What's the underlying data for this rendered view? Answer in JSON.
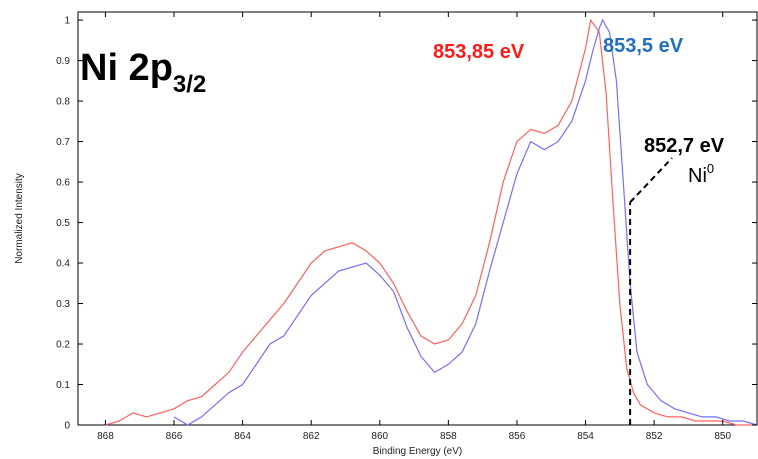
{
  "chart_data": {
    "type": "line",
    "title_main": "Ni 2p",
    "title_subscript": "3/2",
    "xlabel": "Binding Energy (eV)",
    "ylabel": "Normalized Intensity",
    "xlim": [
      849,
      868.8
    ],
    "x_reversed": true,
    "ylim": [
      0,
      1.02
    ],
    "x_ticks": [
      868,
      866,
      864,
      862,
      860,
      858,
      856,
      854,
      852,
      850
    ],
    "y_ticks": [
      0,
      0.1,
      0.2,
      0.3,
      0.4,
      0.5,
      0.6,
      0.7,
      0.8,
      0.9,
      1
    ],
    "y_tick_labels": [
      "0",
      "0.1",
      "0.2",
      "0.3",
      "0.4",
      "0.5",
      "0.6",
      "0.7",
      "0.8",
      "0.9",
      "1"
    ],
    "grid": false,
    "series": [
      {
        "color": "#ff6060",
        "x": [
          868.0,
          867.6,
          867.2,
          866.8,
          866.4,
          866.0,
          865.6,
          865.2,
          864.8,
          864.4,
          864.0,
          863.6,
          863.2,
          862.8,
          862.4,
          862.0,
          861.6,
          861.2,
          860.8,
          860.4,
          860.0,
          859.6,
          859.2,
          858.8,
          858.4,
          858.0,
          857.6,
          857.2,
          856.8,
          856.4,
          856.0,
          855.6,
          855.2,
          854.8,
          854.4,
          854.0,
          853.85,
          853.6,
          853.4,
          853.2,
          853.0,
          852.8,
          852.6,
          852.4,
          852.0,
          851.6,
          851.2,
          850.8,
          850.4,
          850.0,
          849.6,
          849.0
        ],
        "y": [
          0.0,
          0.01,
          0.03,
          0.02,
          0.03,
          0.04,
          0.06,
          0.07,
          0.1,
          0.13,
          0.18,
          0.22,
          0.26,
          0.3,
          0.35,
          0.4,
          0.43,
          0.44,
          0.45,
          0.43,
          0.4,
          0.35,
          0.28,
          0.22,
          0.2,
          0.21,
          0.25,
          0.32,
          0.45,
          0.6,
          0.7,
          0.73,
          0.72,
          0.74,
          0.8,
          0.93,
          1.0,
          0.97,
          0.82,
          0.55,
          0.3,
          0.14,
          0.08,
          0.05,
          0.03,
          0.02,
          0.02,
          0.01,
          0.01,
          0.01,
          0.0,
          0.0
        ]
      },
      {
        "color": "#7070ff",
        "x": [
          866.0,
          865.6,
          865.2,
          864.8,
          864.4,
          864.0,
          863.6,
          863.2,
          862.8,
          862.4,
          862.0,
          861.6,
          861.2,
          860.8,
          860.4,
          860.0,
          859.6,
          859.2,
          858.8,
          858.4,
          858.0,
          857.6,
          857.2,
          856.8,
          856.4,
          856.0,
          855.6,
          855.2,
          854.8,
          854.4,
          854.0,
          853.8,
          853.6,
          853.5,
          853.3,
          853.1,
          852.9,
          852.7,
          852.5,
          852.2,
          851.8,
          851.4,
          851.0,
          850.6,
          850.2,
          849.8,
          849.4,
          849.0
        ],
        "y": [
          0.02,
          0.0,
          0.02,
          0.05,
          0.08,
          0.1,
          0.15,
          0.2,
          0.22,
          0.27,
          0.32,
          0.35,
          0.38,
          0.39,
          0.4,
          0.37,
          0.33,
          0.24,
          0.17,
          0.13,
          0.15,
          0.18,
          0.25,
          0.38,
          0.5,
          0.62,
          0.7,
          0.68,
          0.7,
          0.75,
          0.85,
          0.92,
          0.98,
          1.0,
          0.97,
          0.85,
          0.6,
          0.35,
          0.18,
          0.1,
          0.06,
          0.04,
          0.03,
          0.02,
          0.02,
          0.01,
          0.01,
          0.0
        ]
      }
    ],
    "annotations": [
      {
        "id": "red_peak",
        "text": "853,85 eV",
        "color": "#ff1a1a"
      },
      {
        "id": "blue_peak",
        "text": "853,5 eV",
        "color": "#1f6fbf"
      },
      {
        "id": "metal",
        "text": "852,7 eV",
        "color": "#000000"
      },
      {
        "id": "ni0",
        "text": "Ni",
        "superscript": "0",
        "color": "#000000"
      }
    ],
    "reference_line": {
      "x": 852.7,
      "y_top": 0.55,
      "style": "dashed",
      "color": "#000000"
    }
  }
}
